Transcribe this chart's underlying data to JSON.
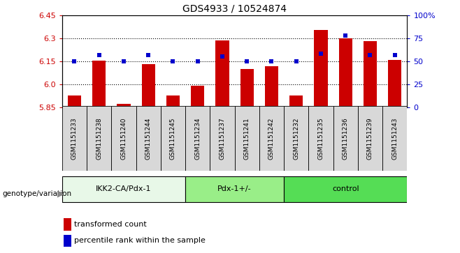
{
  "title": "GDS4933 / 10524874",
  "samples": [
    "GSM1151233",
    "GSM1151238",
    "GSM1151240",
    "GSM1151244",
    "GSM1151245",
    "GSM1151234",
    "GSM1151237",
    "GSM1151241",
    "GSM1151242",
    "GSM1151232",
    "GSM1151235",
    "GSM1151236",
    "GSM1151239",
    "GSM1151243"
  ],
  "bar_values": [
    5.93,
    6.155,
    5.875,
    6.13,
    5.93,
    5.99,
    6.285,
    6.1,
    6.12,
    5.93,
    6.355,
    6.3,
    6.28,
    6.16
  ],
  "percentile_values": [
    50,
    57,
    50,
    57,
    50,
    50,
    55,
    50,
    50,
    50,
    58,
    78,
    57,
    57
  ],
  "ylim_left": [
    5.85,
    6.45
  ],
  "ylim_right": [
    0,
    100
  ],
  "yticks_left": [
    5.85,
    6.0,
    6.15,
    6.3,
    6.45
  ],
  "yticks_right": [
    0,
    25,
    50,
    75,
    100
  ],
  "bar_color": "#cc0000",
  "dot_color": "#0000cc",
  "bar_bottom": 5.85,
  "groups": [
    {
      "label": "IKK2-CA/Pdx-1",
      "start": 0,
      "end": 5
    },
    {
      "label": "Pdx-1+/-",
      "start": 5,
      "end": 9
    },
    {
      "label": "control",
      "start": 9,
      "end": 14
    }
  ],
  "group_colors": [
    "#e8f8e8",
    "#99ee88",
    "#55dd55"
  ],
  "group_label_prefix": "genotype/variation",
  "legend_label_red": "transformed count",
  "legend_label_blue": "percentile rank within the sample",
  "grid_yticks": [
    6.0,
    6.15,
    6.3
  ],
  "background_color": "#ffffff",
  "sample_box_color": "#d8d8d8",
  "arrow_color": "#888888"
}
